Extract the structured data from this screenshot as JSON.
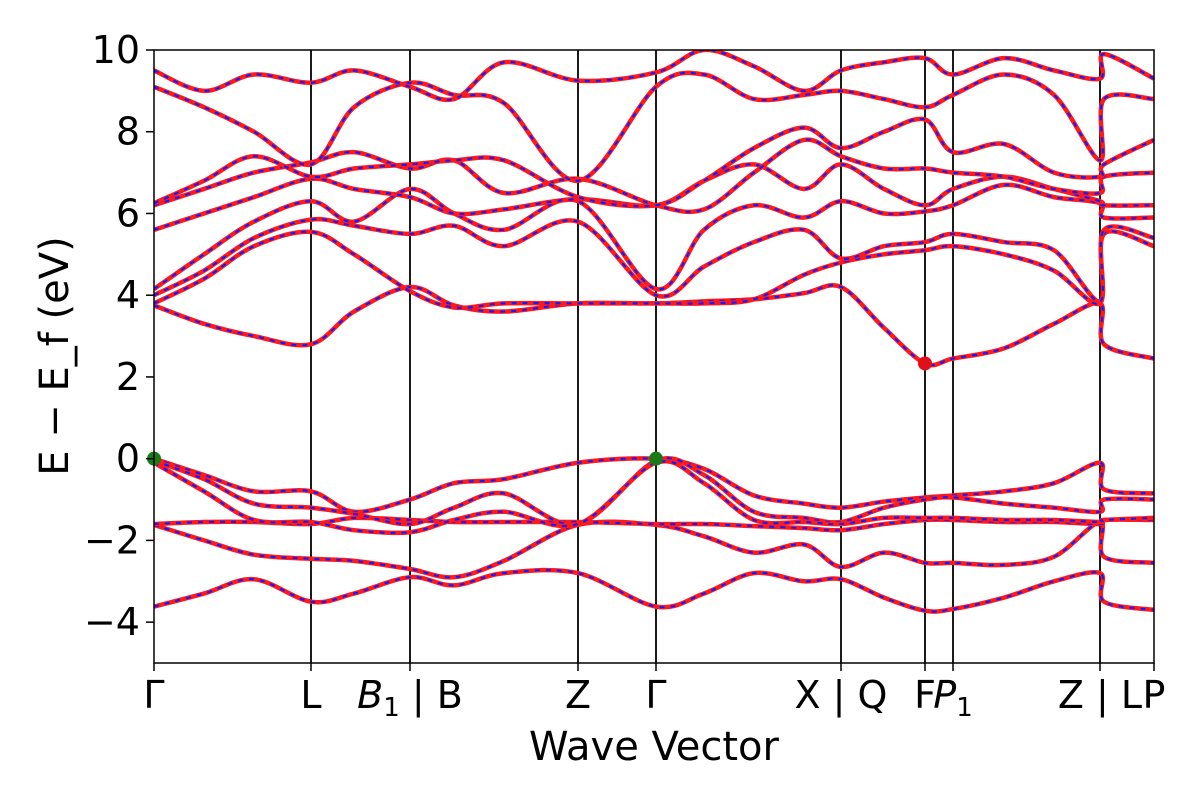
{
  "chart_data": {
    "type": "line",
    "xlabel": "Wave Vector",
    "ylabel": "E − E_f (eV)",
    "ylim": [
      -5,
      10
    ],
    "xlim": [
      0,
      1
    ],
    "grid": false,
    "yticks": [
      -4,
      -2,
      0,
      2,
      4,
      6,
      8,
      10
    ],
    "kpoints": [
      {
        "label": "Γ",
        "x": 0.0
      },
      {
        "label": "L",
        "x": 0.157
      },
      {
        "label": "B1 | B",
        "x": 0.256
      },
      {
        "label": "Z",
        "x": 0.424
      },
      {
        "label": "Γ",
        "x": 0.502
      },
      {
        "label": "X | Q",
        "x": 0.687
      },
      {
        "label": "F",
        "x": 0.771
      },
      {
        "label": "P1",
        "x": 0.799
      },
      {
        "label": "Z | L",
        "x": 0.946
      },
      {
        "label": "P",
        "x": 1.0
      }
    ],
    "markers": [
      {
        "name": "VBM",
        "x": 0.0,
        "y": 0.0,
        "color": "#1a7a1a"
      },
      {
        "name": "VBM",
        "x": 0.502,
        "y": 0.0,
        "color": "#1a7a1a"
      },
      {
        "name": "CBM",
        "x": 0.771,
        "y": 2.33,
        "color": "#e0101a"
      }
    ],
    "series": [
      {
        "x": [
          0,
          0.05,
          0.1,
          0.157,
          0.2,
          0.256,
          0.3,
          0.35,
          0.424,
          0.502,
          0.55,
          0.6,
          0.65,
          0.687,
          0.73,
          0.771,
          0.799,
          0.85,
          0.9,
          0.946,
          0.95,
          1
        ],
        "y": [
          -3.62,
          -3.3,
          -2.95,
          -3.5,
          -3.3,
          -2.9,
          -3.1,
          -2.8,
          -2.8,
          -3.62,
          -3.3,
          -2.8,
          -3.0,
          -2.95,
          -3.4,
          -3.72,
          -3.68,
          -3.4,
          -3.0,
          -2.8,
          -3.5,
          -3.7
        ]
      },
      {
        "x": [
          0,
          0.05,
          0.1,
          0.157,
          0.2,
          0.256,
          0.3,
          0.35,
          0.424,
          0.502,
          0.55,
          0.6,
          0.65,
          0.687,
          0.73,
          0.771,
          0.799,
          0.85,
          0.9,
          0.946,
          0.95,
          1
        ],
        "y": [
          -1.62,
          -2.0,
          -2.35,
          -2.45,
          -2.5,
          -2.7,
          -2.9,
          -2.5,
          -1.62,
          -1.62,
          -1.9,
          -2.3,
          -2.1,
          -2.65,
          -2.3,
          -2.55,
          -2.55,
          -2.6,
          -2.4,
          -1.55,
          -2.4,
          -2.55
        ]
      },
      {
        "x": [
          0,
          0.05,
          0.1,
          0.157,
          0.2,
          0.256,
          0.3,
          0.35,
          0.424,
          0.502,
          0.55,
          0.6,
          0.65,
          0.687,
          0.73,
          0.771,
          0.799,
          0.85,
          0.9,
          0.946,
          0.95,
          1
        ],
        "y": [
          -1.6,
          -1.55,
          -1.55,
          -1.6,
          -1.45,
          -1.5,
          -1.55,
          -1.55,
          -1.55,
          -1.6,
          -1.6,
          -1.65,
          -1.7,
          -1.75,
          -1.6,
          -1.5,
          -1.5,
          -1.55,
          -1.55,
          -1.6,
          -1.5,
          -1.5
        ]
      },
      {
        "x": [
          0,
          0.05,
          0.1,
          0.157,
          0.2,
          0.256,
          0.3,
          0.35,
          0.424,
          0.502,
          0.55,
          0.6,
          0.65,
          0.687,
          0.73,
          0.771,
          0.799,
          0.85,
          0.9,
          0.946,
          0.95,
          1
        ],
        "y": [
          0.0,
          -0.4,
          -0.8,
          -0.8,
          -1.3,
          -1.0,
          -0.6,
          -0.5,
          -0.1,
          0.0,
          -0.25,
          -0.9,
          -1.1,
          -1.2,
          -1.05,
          -0.95,
          -0.9,
          -0.8,
          -0.6,
          -0.1,
          -0.75,
          -0.85
        ]
      },
      {
        "x": [
          0,
          0.05,
          0.1,
          0.157,
          0.2,
          0.256,
          0.3,
          0.35,
          0.424,
          0.502,
          0.55,
          0.6,
          0.65,
          0.687,
          0.73,
          0.771,
          0.799,
          0.85,
          0.9,
          0.946,
          0.95,
          1
        ],
        "y": [
          -0.05,
          -0.5,
          -1.1,
          -1.2,
          -1.35,
          -1.6,
          -1.2,
          -0.85,
          -1.6,
          -0.05,
          -0.4,
          -1.3,
          -1.45,
          -1.55,
          -1.2,
          -1.0,
          -0.95,
          -1.1,
          -1.2,
          -1.3,
          -1.0,
          -1.0
        ]
      },
      {
        "x": [
          0,
          0.05,
          0.1,
          0.157,
          0.2,
          0.256,
          0.3,
          0.35,
          0.424,
          0.502,
          0.55,
          0.6,
          0.65,
          0.687,
          0.73,
          0.771,
          0.799,
          0.85,
          0.9,
          0.946,
          0.95,
          1
        ],
        "y": [
          -0.1,
          -0.8,
          -1.5,
          -1.55,
          -1.75,
          -1.8,
          -1.5,
          -1.3,
          -1.6,
          -0.1,
          -0.6,
          -1.5,
          -1.55,
          -1.6,
          -1.45,
          -1.45,
          -1.45,
          -1.5,
          -1.5,
          -1.55,
          -1.5,
          -1.45
        ]
      },
      {
        "x": [
          0,
          0.05,
          0.1,
          0.157,
          0.2,
          0.256,
          0.3,
          0.35,
          0.424,
          0.502,
          0.55,
          0.6,
          0.65,
          0.687,
          0.73,
          0.771,
          0.799,
          0.85,
          0.9,
          0.946,
          0.95,
          1
        ],
        "y": [
          3.75,
          3.3,
          3.0,
          2.8,
          3.6,
          4.2,
          3.75,
          3.6,
          3.8,
          3.8,
          3.85,
          3.9,
          4.05,
          4.2,
          3.2,
          2.33,
          2.45,
          2.7,
          3.3,
          3.8,
          2.8,
          2.45
        ]
      },
      {
        "x": [
          0,
          0.05,
          0.1,
          0.157,
          0.2,
          0.256,
          0.3,
          0.35,
          0.424,
          0.502,
          0.55,
          0.6,
          0.65,
          0.687,
          0.73,
          0.771,
          0.799,
          0.85,
          0.9,
          0.946,
          0.95,
          1
        ],
        "y": [
          3.8,
          4.4,
          5.2,
          5.55,
          5.0,
          4.1,
          3.7,
          3.8,
          3.8,
          3.8,
          3.8,
          3.9,
          4.5,
          4.8,
          5.0,
          5.1,
          5.2,
          5.0,
          4.6,
          3.8,
          5.5,
          5.2
        ]
      },
      {
        "x": [
          0,
          0.05,
          0.1,
          0.157,
          0.2,
          0.256,
          0.3,
          0.35,
          0.424,
          0.502,
          0.55,
          0.6,
          0.65,
          0.687,
          0.73,
          0.771,
          0.799,
          0.85,
          0.9,
          0.946,
          0.95,
          1
        ],
        "y": [
          4.0,
          4.6,
          5.4,
          5.85,
          5.7,
          5.5,
          5.7,
          5.2,
          5.8,
          4.0,
          4.7,
          5.3,
          5.6,
          4.9,
          5.2,
          5.3,
          5.5,
          5.3,
          5.1,
          3.85,
          5.6,
          5.4
        ]
      },
      {
        "x": [
          0,
          0.05,
          0.1,
          0.157,
          0.2,
          0.256,
          0.3,
          0.35,
          0.424,
          0.502,
          0.55,
          0.6,
          0.65,
          0.687,
          0.73,
          0.771,
          0.799,
          0.85,
          0.9,
          0.946,
          0.95,
          1
        ],
        "y": [
          4.15,
          5.0,
          5.8,
          6.3,
          5.8,
          6.6,
          6.0,
          5.6,
          6.3,
          4.15,
          5.6,
          6.2,
          5.9,
          6.3,
          6.0,
          6.05,
          6.2,
          6.7,
          6.4,
          6.25,
          5.9,
          5.9
        ]
      },
      {
        "x": [
          0,
          0.05,
          0.1,
          0.157,
          0.2,
          0.256,
          0.3,
          0.35,
          0.424,
          0.502,
          0.55,
          0.6,
          0.65,
          0.687,
          0.73,
          0.771,
          0.799,
          0.85,
          0.9,
          0.946,
          0.95,
          1
        ],
        "y": [
          5.6,
          6.0,
          6.4,
          6.85,
          6.6,
          6.4,
          6.0,
          6.1,
          6.35,
          6.2,
          6.8,
          7.2,
          6.6,
          7.2,
          6.6,
          6.2,
          6.6,
          6.9,
          6.6,
          6.3,
          6.2,
          6.2
        ]
      },
      {
        "x": [
          0,
          0.05,
          0.1,
          0.157,
          0.2,
          0.256,
          0.3,
          0.35,
          0.424,
          0.502,
          0.55,
          0.6,
          0.65,
          0.687,
          0.73,
          0.771,
          0.799,
          0.85,
          0.9,
          0.946,
          0.95,
          1
        ],
        "y": [
          6.2,
          6.6,
          7.0,
          7.25,
          7.5,
          7.1,
          7.3,
          6.5,
          6.85,
          6.2,
          6.1,
          7.0,
          7.8,
          7.4,
          7.1,
          7.1,
          7.0,
          6.9,
          6.6,
          6.5,
          6.9,
          7.0
        ]
      },
      {
        "x": [
          0,
          0.05,
          0.1,
          0.157,
          0.2,
          0.256,
          0.3,
          0.35,
          0.424,
          0.502,
          0.55,
          0.6,
          0.65,
          0.687,
          0.73,
          0.771,
          0.799,
          0.85,
          0.9,
          0.946,
          0.95,
          1
        ],
        "y": [
          6.25,
          6.8,
          7.4,
          6.9,
          7.1,
          7.2,
          7.3,
          7.3,
          6.4,
          6.2,
          6.8,
          7.6,
          8.1,
          7.6,
          8.0,
          8.3,
          7.5,
          7.7,
          7.0,
          6.9,
          7.2,
          7.8
        ]
      },
      {
        "x": [
          0,
          0.05,
          0.1,
          0.157,
          0.2,
          0.256,
          0.3,
          0.35,
          0.424,
          0.502,
          0.55,
          0.6,
          0.65,
          0.687,
          0.73,
          0.771,
          0.799,
          0.85,
          0.9,
          0.946,
          0.95,
          1
        ],
        "y": [
          9.1,
          8.6,
          8.0,
          7.2,
          8.6,
          9.2,
          8.9,
          8.7,
          6.8,
          9.1,
          9.4,
          8.8,
          8.9,
          9.0,
          8.8,
          8.6,
          8.9,
          9.4,
          8.9,
          7.3,
          8.8,
          8.8
        ]
      },
      {
        "x": [
          0,
          0.05,
          0.1,
          0.157,
          0.2,
          0.256,
          0.3,
          0.35,
          0.424,
          0.502,
          0.55,
          0.6,
          0.65,
          0.687,
          0.73,
          0.771,
          0.799,
          0.85,
          0.9,
          0.946,
          0.95,
          1
        ],
        "y": [
          9.5,
          9.0,
          9.4,
          9.2,
          9.5,
          9.1,
          8.8,
          9.7,
          9.25,
          9.45,
          10.0,
          9.6,
          9.0,
          9.5,
          9.7,
          9.8,
          9.4,
          9.8,
          9.5,
          9.3,
          9.9,
          9.3
        ]
      }
    ],
    "band_colors": {
      "solid": "#ff1a1a",
      "dashed": "#1a1aff",
      "grid_line": "#000000"
    }
  }
}
